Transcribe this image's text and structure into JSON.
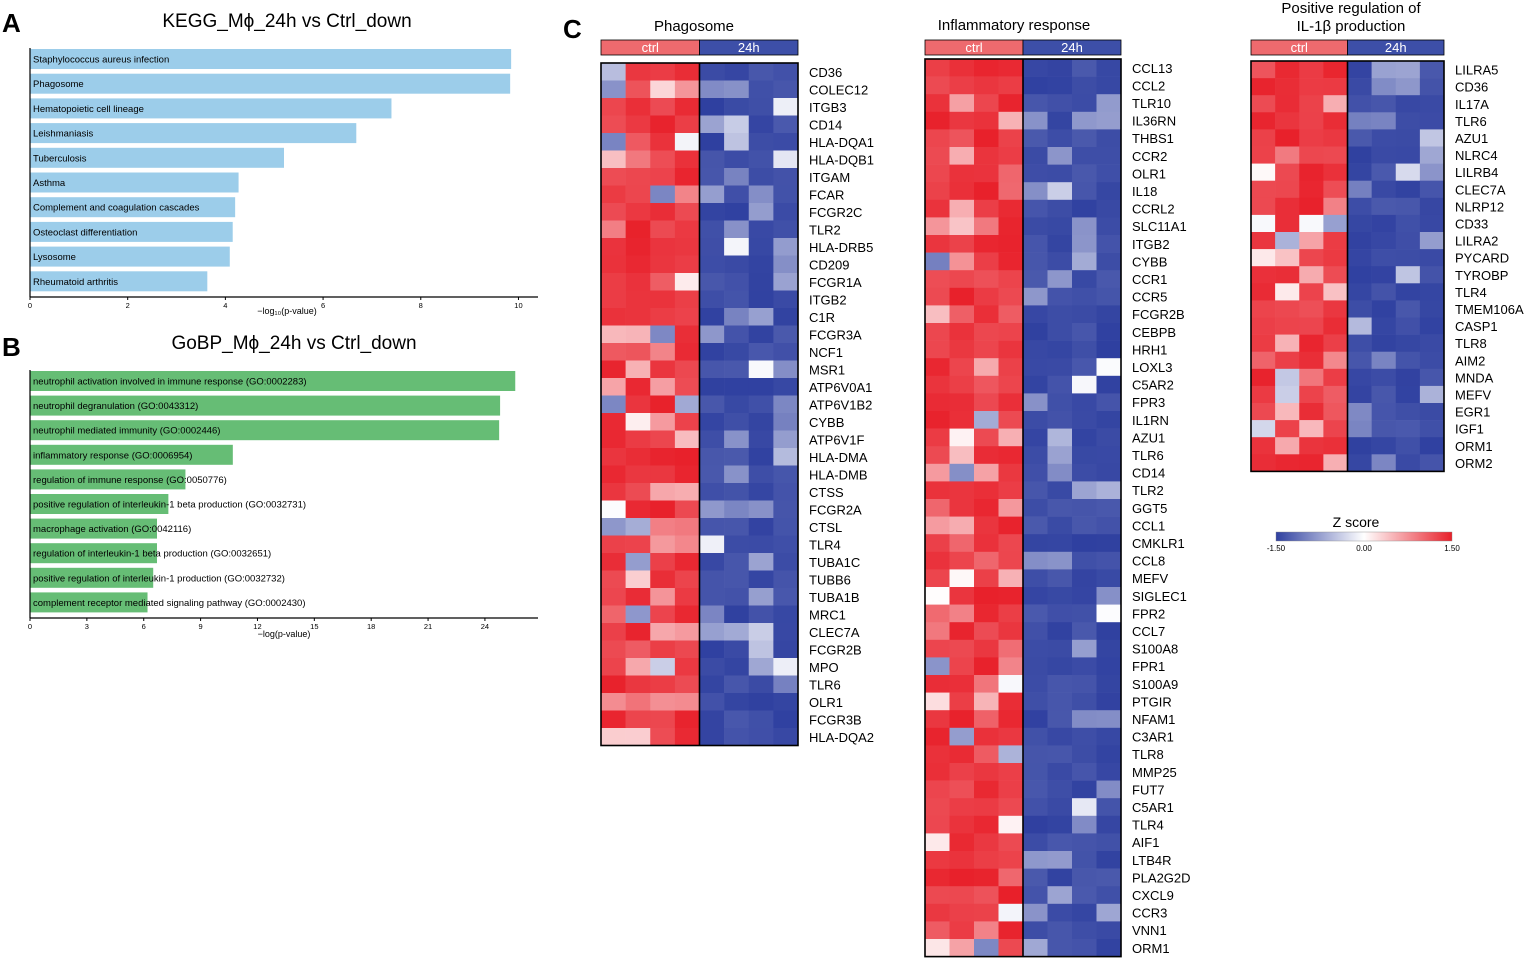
{
  "panel_letters": {
    "a": "A",
    "b": "B",
    "c": "C"
  },
  "chart_data": [
    {
      "type": "bar",
      "orientation": "horizontal",
      "title": "KEGG_Mϕ_24h vs Ctrl_down",
      "xlabel": "−log₁₀(p-value)",
      "xlim": [
        0,
        10.4
      ],
      "xticks": [
        0,
        2,
        4,
        6,
        8,
        10
      ],
      "bar_color": "#9ccdea",
      "categories": [
        "Staphylococcus aureus infection",
        "Phagosome",
        "Hematopoietic cell lineage",
        "Leishmaniasis",
        "Tuberculosis",
        "Asthma",
        "Complement and coagulation cascades",
        "Osteoclast differentiation",
        "Lysosome",
        "Rheumatoid arthritis"
      ],
      "values": [
        9.85,
        9.83,
        7.4,
        6.68,
        5.2,
        4.27,
        4.2,
        4.15,
        4.09,
        3.63
      ]
    },
    {
      "type": "bar",
      "orientation": "horizontal",
      "title": "GoBP_Mϕ_24h vs Ctrl_down",
      "xlabel": "−log(p-value)",
      "xlim": [
        0,
        26.8
      ],
      "xticks": [
        0,
        3,
        6,
        9,
        12,
        15,
        18,
        21,
        24
      ],
      "bar_color": "#66bd75",
      "categories": [
        "neutrophil activation involved in immune response (GO:0002283)",
        "neutrophil degranulation (GO:0043312)",
        "neutrophil mediated immunity (GO:0002446)",
        "inflammatory response (GO:0006954)",
        "regulation of immune response (GO:0050776)",
        "positive regulation of interleukin-1 beta production (GO:0032731)",
        "macrophage activation (GO:0042116)",
        "regulation of interleukin-1 beta production (GO:0032651)",
        "positive regulation of interleukin-1 production (GO:0032732)",
        "complement receptor mediated signaling pathway (GO:0002430)"
      ],
      "values": [
        25.6,
        24.8,
        24.75,
        10.7,
        8.2,
        7.3,
        6.7,
        6.7,
        6.5,
        6.2
      ]
    },
    {
      "type": "heatmap",
      "title": "Phagosome",
      "groups": [
        "ctrl",
        "24h"
      ],
      "genes": [
        "CD36",
        "COLEC12",
        "ITGB3",
        "CD14",
        "HLA-DQA1",
        "HLA-DQB1",
        "ITGAM",
        "FCAR",
        "FCGR2C",
        "TLR2",
        "HLA-DRB5",
        "CD209",
        "FCGR1A",
        "ITGB2",
        "C1R",
        "FCGR3A",
        "NCF1",
        "MSR1",
        "ATP6V0A1",
        "ATP6V1B2",
        "CYBB",
        "ATP6V1F",
        "HLA-DMA",
        "HLA-DMB",
        "CTSS",
        "FCGR2A",
        "CTSL",
        "TLR4",
        "TUBA1C",
        "TUBB6",
        "TUBA1B",
        "MRC1",
        "CLEC7A",
        "FCGR2B",
        "MPO",
        "TLR6",
        "OLR1",
        "FCGR3B",
        "HLA-DQA2"
      ],
      "zlim": [
        -1.5,
        1.5
      ]
    },
    {
      "type": "heatmap",
      "title": "Inflammatory response",
      "groups": [
        "ctrl",
        "24h"
      ],
      "genes": [
        "CCL13",
        "CCL2",
        "TLR10",
        "IL36RN",
        "THBS1",
        "CCR2",
        "OLR1",
        "IL18",
        "CCRL2",
        "SLC11A1",
        "ITGB2",
        "CYBB",
        "CCR1",
        "CCR5",
        "FCGR2B",
        "CEBPB",
        "HRH1",
        "LOXL3",
        "C5AR2",
        "FPR3",
        "IL1RN",
        "AZU1",
        "TLR6",
        "CD14",
        "TLR2",
        "GGT5",
        "CCL1",
        "CMKLR1",
        "CCL8",
        "MEFV",
        "SIGLEC1",
        "FPR2",
        "CCL7",
        "S100A8",
        "FPR1",
        "S100A9",
        "PTGIR",
        "NFAM1",
        "C3AR1",
        "TLR8",
        "MMP25",
        "FUT7",
        "C5AR1",
        "TLR4",
        "AIF1",
        "LTB4R",
        "PLA2G2D",
        "CXCL9",
        "CCR3",
        "VNN1",
        "ORM1"
      ],
      "zlim": [
        -1.5,
        1.5
      ]
    },
    {
      "type": "heatmap",
      "title_line1": "Positive regulation of",
      "title_line2": "IL-1β production",
      "groups": [
        "ctrl",
        "24h"
      ],
      "genes": [
        "LILRA5",
        "CD36",
        "IL17A",
        "TLR6",
        "AZU1",
        "NLRC4",
        "LILRB4",
        "CLEC7A",
        "NLRP12",
        "CD33",
        "LILRA2",
        "PYCARD",
        "TYROBP",
        "TLR4",
        "TMEM106A",
        "CASP1",
        "TLR8",
        "AIM2",
        "MNDA",
        "MEFV",
        "EGR1",
        "IGF1",
        "ORM1",
        "ORM2"
      ],
      "zlim": [
        -1.5,
        1.5
      ]
    }
  ],
  "legend": {
    "title": "Z score",
    "min_label": "-1.50",
    "mid_label": "0.00",
    "max_label": "1.50"
  },
  "colors": {
    "high": "#e8202a",
    "mid": "#ffffff",
    "low": "#2f40a0",
    "ctrl_bar": "#ee6a6e",
    "h24_bar": "#3d4fa8"
  }
}
